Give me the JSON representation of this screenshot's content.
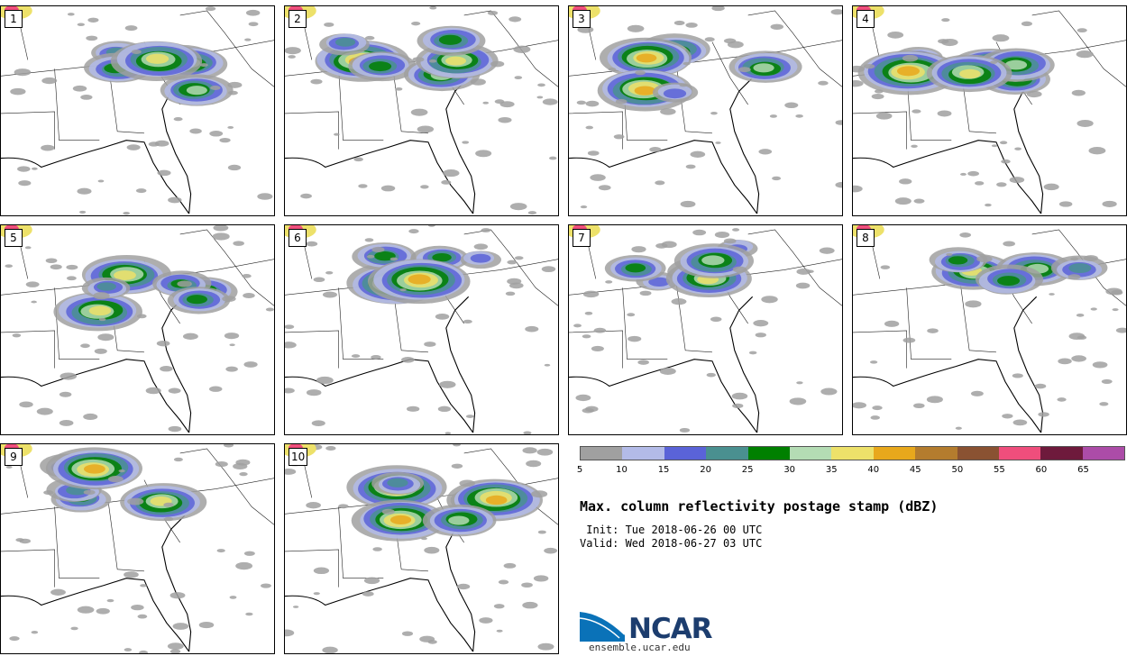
{
  "panels": [
    {
      "label": "1"
    },
    {
      "label": "2"
    },
    {
      "label": "3"
    },
    {
      "label": "4"
    },
    {
      "label": "5"
    },
    {
      "label": "6"
    },
    {
      "label": "7"
    },
    {
      "label": "8"
    },
    {
      "label": "9"
    },
    {
      "label": "10"
    }
  ],
  "colorbar": {
    "colors": [
      "#a0a0a0",
      "#b3bbe8",
      "#5a63d8",
      "#4a9090",
      "#008000",
      "#b4dcb4",
      "#ede16a",
      "#e8a81c",
      "#b47c2e",
      "#8a5232",
      "#ef4e7c",
      "#6e1a3c",
      "#ac4ca8"
    ],
    "ticks": [
      "5",
      "10",
      "15",
      "20",
      "25",
      "30",
      "35",
      "40",
      "45",
      "50",
      "55",
      "60",
      "65"
    ]
  },
  "title": "Max. column reflectivity postage stamp (dBZ)",
  "init": " Init: Tue 2018-06-26 00 UTC",
  "valid": "Valid: Wed 2018-06-27 03 UTC",
  "logo": {
    "text": "NCAR",
    "url": "ensemble.ucar.edu"
  }
}
